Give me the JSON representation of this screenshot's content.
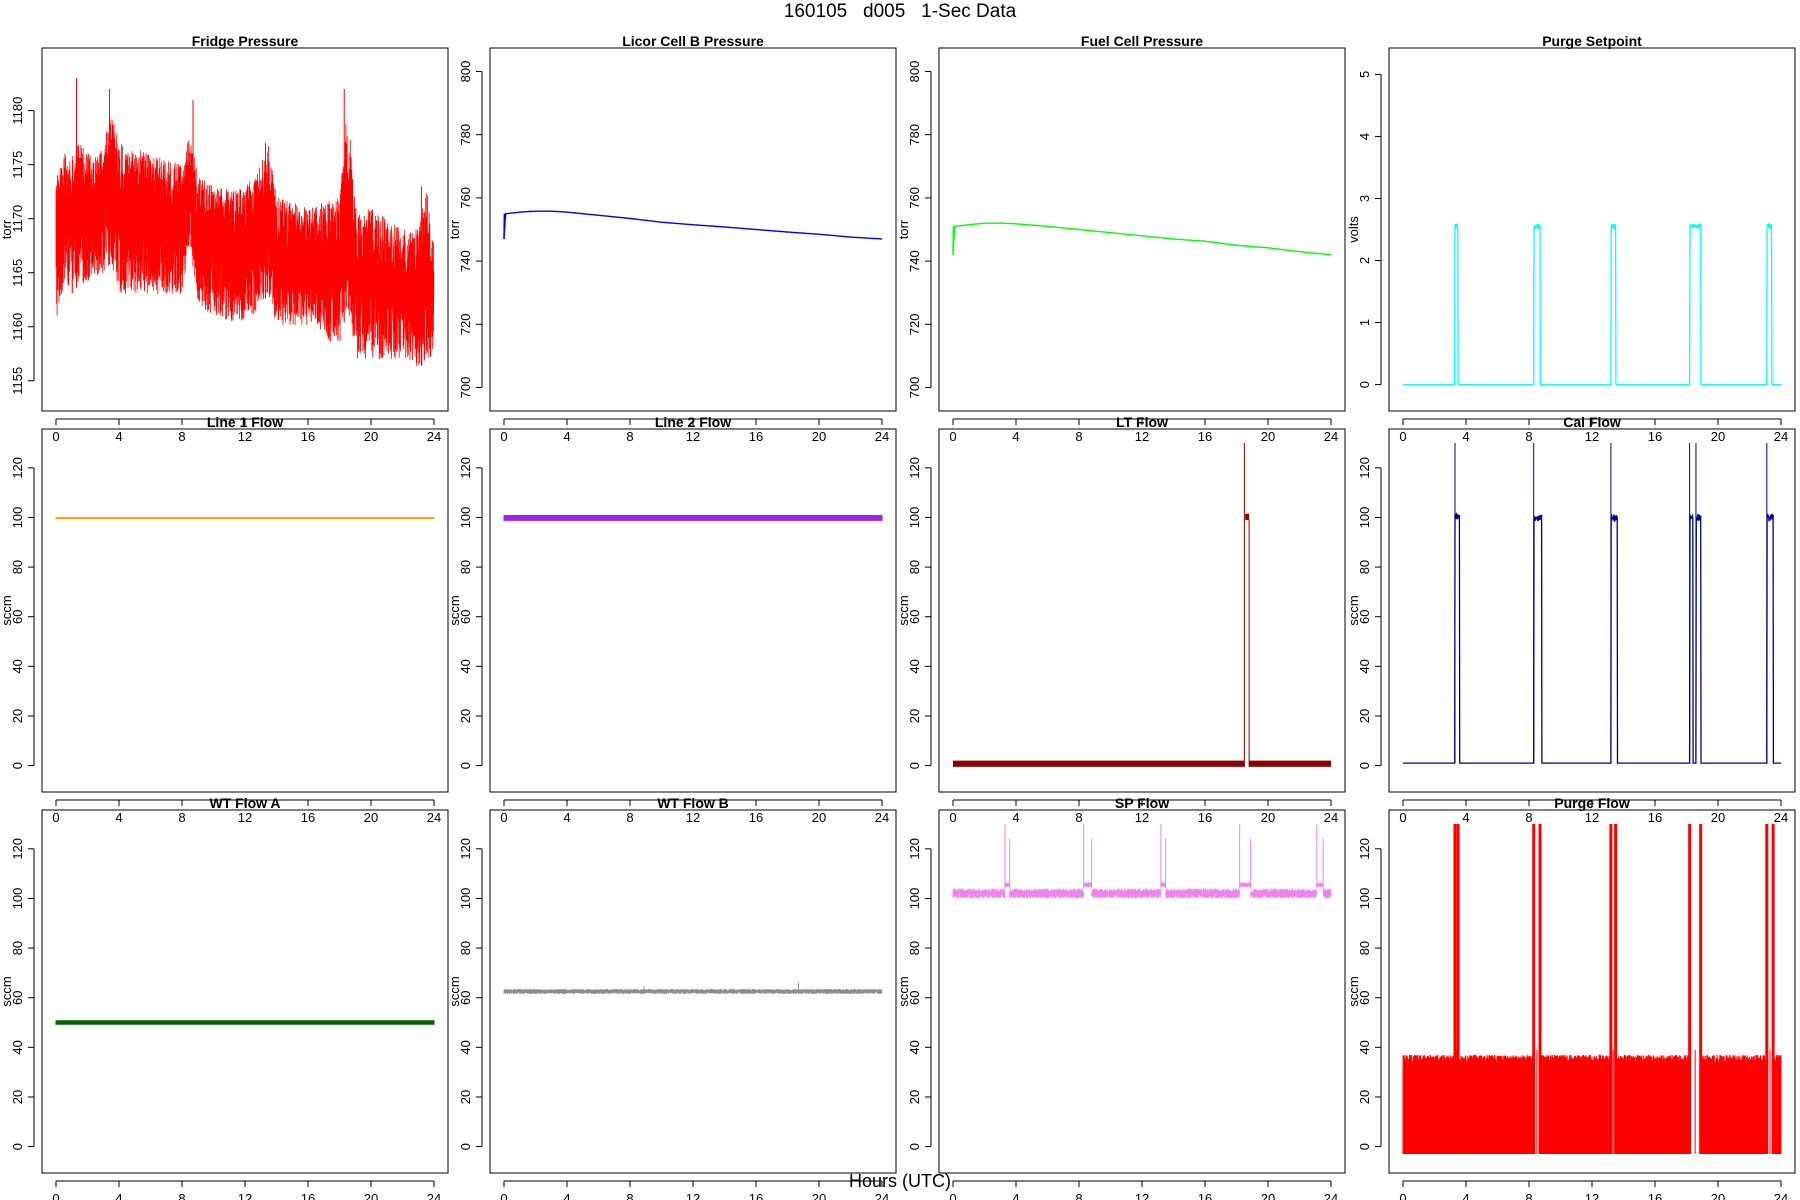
{
  "page": {
    "title": "160105   d005   1-Sec Data",
    "x_label": "Hours (UTC)"
  },
  "chart_data": [
    {
      "type": "line",
      "title": "Fridge Pressure",
      "ylabel": "torr",
      "color": "#ff0000",
      "xlim": [
        0,
        24
      ],
      "ylim": [
        1153.5,
        1184.5
      ],
      "xticks": [
        0,
        4,
        8,
        12,
        16,
        20,
        24
      ],
      "yticks": [
        1155,
        1160,
        1165,
        1170,
        1175,
        1180
      ],
      "style": "noise",
      "x": [
        0,
        0.5,
        1,
        1.5,
        2,
        3,
        3.5,
        4,
        6,
        8,
        8.5,
        9,
        10,
        12,
        13,
        13.5,
        14,
        16,
        18,
        18.5,
        19,
        20,
        22,
        23,
        23.5,
        24
      ],
      "y_low": [
        1160,
        1164,
        1163,
        1164,
        1164,
        1165,
        1166,
        1163,
        1163,
        1163,
        1168,
        1162,
        1161,
        1160,
        1162,
        1163,
        1160,
        1160,
        1158,
        1162,
        1157,
        1157,
        1157,
        1156,
        1157,
        1157
      ],
      "y_high": [
        1174,
        1176,
        1176,
        1177,
        1176,
        1177,
        1180,
        1177,
        1176,
        1175,
        1178,
        1174,
        1173,
        1173,
        1175,
        1177,
        1172,
        1171,
        1172,
        1181,
        1171,
        1171,
        1169,
        1169,
        1173,
        1168
      ],
      "spikes": [
        {
          "x": 1.3,
          "y": 1183
        },
        {
          "x": 3.4,
          "y": 1182
        },
        {
          "x": 8.7,
          "y": 1181
        },
        {
          "x": 13.3,
          "y": 1177
        },
        {
          "x": 18.3,
          "y": 1182
        },
        {
          "x": 23.2,
          "y": 1173
        }
      ]
    },
    {
      "type": "line",
      "title": "Licor Cell B Pressure",
      "ylabel": "torr",
      "color": "#0000ff",
      "xlim": [
        0,
        24
      ],
      "ylim": [
        697,
        803
      ],
      "xticks": [
        0,
        4,
        8,
        12,
        16,
        20,
        24
      ],
      "yticks": [
        700,
        720,
        740,
        760,
        780,
        800
      ],
      "style": "line",
      "x": [
        0,
        0.1,
        0.15,
        1,
        2,
        3,
        4,
        6,
        8,
        10,
        12,
        14,
        16,
        18,
        20,
        22,
        24
      ],
      "y": [
        747,
        755,
        755,
        755.5,
        755.8,
        755.8,
        755.5,
        754.5,
        753.5,
        752.3,
        751.5,
        750.8,
        750,
        749.2,
        748.5,
        747.6,
        747
      ]
    },
    {
      "type": "line",
      "title": "Fuel Cell Pressure",
      "ylabel": "torr",
      "color": "#00ff00",
      "xlim": [
        0,
        24
      ],
      "ylim": [
        697,
        803
      ],
      "xticks": [
        0,
        4,
        8,
        12,
        16,
        20,
        24
      ],
      "yticks": [
        700,
        720,
        740,
        760,
        780,
        800
      ],
      "style": "line",
      "x": [
        0,
        0.1,
        0.15,
        1,
        2,
        3,
        4,
        6,
        8,
        10,
        12,
        14,
        16,
        18,
        20,
        22,
        24
      ],
      "y": [
        742,
        751,
        751,
        751.5,
        752,
        752,
        751.8,
        751,
        750,
        749,
        748,
        747,
        746.3,
        745,
        744.2,
        743,
        742
      ]
    },
    {
      "type": "line",
      "title": "Purge Setpoint",
      "ylabel": "volts",
      "color": "#00ffff",
      "xlim": [
        0,
        24
      ],
      "ylim": [
        -0.2,
        5.2
      ],
      "xticks": [
        0,
        4,
        8,
        12,
        16,
        20,
        24
      ],
      "yticks": [
        0,
        1,
        2,
        3,
        4,
        5
      ],
      "style": "pulse",
      "base": 0,
      "peak": 2.55,
      "pulses": [
        [
          3.3,
          3.5
        ],
        [
          8.3,
          8.7
        ],
        [
          13.2,
          13.5
        ],
        [
          18.2,
          18.9
        ],
        [
          23.1,
          23.4
        ]
      ]
    },
    {
      "type": "line",
      "title": "Line 1 Flow",
      "ylabel": "sccm",
      "color": "#ffa500",
      "xlim": [
        0,
        24
      ],
      "ylim": [
        -5,
        130
      ],
      "xticks": [
        0,
        4,
        8,
        12,
        16,
        20,
        24
      ],
      "yticks": [
        0,
        20,
        40,
        60,
        80,
        100,
        120
      ],
      "style": "band",
      "x": [
        0,
        24
      ],
      "y_low": [
        99.5,
        99.5
      ],
      "y_high": [
        100,
        100
      ]
    },
    {
      "type": "line",
      "title": "Line 2 Flow",
      "ylabel": "sccm",
      "color": "#a020f0",
      "xlim": [
        0,
        24
      ],
      "ylim": [
        -5,
        130
      ],
      "xticks": [
        0,
        4,
        8,
        12,
        16,
        20,
        24
      ],
      "yticks": [
        0,
        20,
        40,
        60,
        80,
        100,
        120
      ],
      "style": "band",
      "x": [
        0,
        24
      ],
      "y_low": [
        98.8,
        98.8
      ],
      "y_high": [
        100.8,
        100.8
      ]
    },
    {
      "type": "line",
      "title": "LT Flow",
      "ylabel": "sccm",
      "color": "#8b0000",
      "xlim": [
        0,
        24
      ],
      "ylim": [
        -5,
        130
      ],
      "xticks": [
        0,
        4,
        8,
        12,
        16,
        20,
        24
      ],
      "yticks": [
        0,
        20,
        40,
        60,
        80,
        100,
        120
      ],
      "style": "lt",
      "base_low": -0.5,
      "base_high": 2,
      "pulse": [
        18.5,
        18.8
      ],
      "pulse_low": 99,
      "pulse_high": 101.5,
      "spike_top": 130
    },
    {
      "type": "line",
      "title": "Cal Flow",
      "ylabel": "sccm",
      "color": "#00008b",
      "xlim": [
        0,
        24
      ],
      "ylim": [
        -5,
        130
      ],
      "xticks": [
        0,
        4,
        8,
        12,
        16,
        20,
        24
      ],
      "yticks": [
        0,
        20,
        40,
        60,
        80,
        100,
        120
      ],
      "style": "pulse",
      "base": 1,
      "peak": 100,
      "spike_top": 130,
      "pulses": [
        [
          3.3,
          3.6
        ],
        [
          8.3,
          8.8
        ],
        [
          13.2,
          13.6
        ],
        [
          18.2,
          18.4
        ],
        [
          18.6,
          18.9
        ],
        [
          23.1,
          23.5
        ]
      ]
    },
    {
      "type": "line",
      "title": "WT Flow A",
      "ylabel": "sccm",
      "color": "#006400",
      "xlim": [
        0,
        24
      ],
      "ylim": [
        -5,
        130
      ],
      "xticks": [
        0,
        4,
        8,
        12,
        16,
        20,
        24
      ],
      "yticks": [
        0,
        20,
        40,
        60,
        80,
        100,
        120
      ],
      "style": "band",
      "x": [
        0,
        24
      ],
      "y_low": [
        49.3,
        49.3
      ],
      "y_high": [
        50.7,
        50.7
      ]
    },
    {
      "type": "line",
      "title": "WT Flow B",
      "ylabel": "sccm",
      "color": "#8c8c8c",
      "xlim": [
        0,
        24
      ],
      "ylim": [
        -5,
        130
      ],
      "xticks": [
        0,
        4,
        8,
        12,
        16,
        20,
        24
      ],
      "yticks": [
        0,
        20,
        40,
        60,
        80,
        100,
        120
      ],
      "style": "noise",
      "x": [
        0,
        24
      ],
      "y_low": [
        61.5,
        61.5
      ],
      "y_high": [
        63.5,
        63.5
      ],
      "spikes": [
        {
          "x": 18.7,
          "y": 66
        },
        {
          "x": 8.9,
          "y": 64.5
        }
      ]
    },
    {
      "type": "line",
      "title": "SP Flow",
      "ylabel": "sccm",
      "color": "#ee82ee",
      "xlim": [
        0,
        24
      ],
      "ylim": [
        -5,
        130
      ],
      "xticks": [
        0,
        4,
        8,
        12,
        16,
        20,
        24
      ],
      "yticks": [
        0,
        20,
        40,
        60,
        80,
        100,
        120
      ],
      "style": "sp",
      "x": [
        0,
        24
      ],
      "y_low": [
        100,
        100
      ],
      "y_high": [
        104,
        104
      ],
      "pulses": [
        [
          3.3,
          3.6
        ],
        [
          8.3,
          8.8
        ],
        [
          13.2,
          13.5
        ],
        [
          18.2,
          18.9
        ],
        [
          23.1,
          23.5
        ]
      ],
      "pulse_level": 105.5,
      "spike_top": 130
    },
    {
      "type": "line",
      "title": "Purge Flow",
      "ylabel": "sccm",
      "color": "#ff0000",
      "xlim": [
        0,
        24
      ],
      "ylim": [
        -5,
        130
      ],
      "xticks": [
        0,
        4,
        8,
        12,
        16,
        20,
        24
      ],
      "yticks": [
        0,
        20,
        40,
        60,
        80,
        100,
        120
      ],
      "style": "purge",
      "base_low": -3,
      "base_high": 31,
      "noise_top": 37,
      "pulses": [
        [
          3.3,
          3.5
        ],
        [
          8.3,
          8.7
        ],
        [
          13.2,
          13.5
        ],
        [
          18.2,
          18.9
        ],
        [
          23.1,
          23.5
        ]
      ],
      "spike_top": 130
    }
  ]
}
